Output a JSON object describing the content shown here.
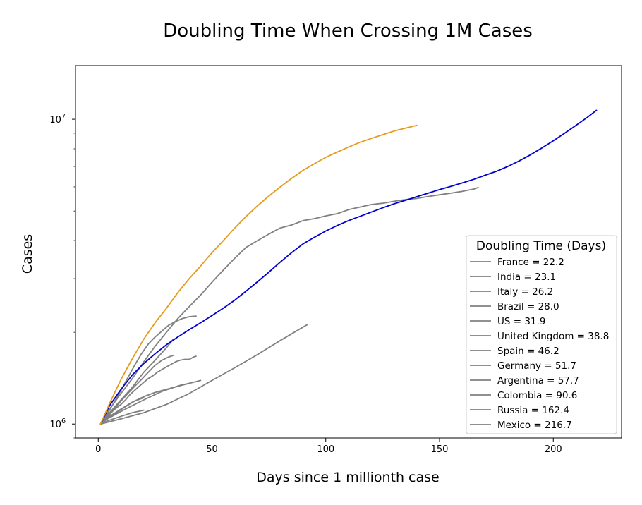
{
  "chart_data": {
    "type": "line",
    "title": "Doubling Time When Crossing 1M Cases",
    "xlabel": "Days since 1 millionth case",
    "ylabel": "Cases",
    "xlim": [
      -10,
      230
    ],
    "ylim": [
      900000,
      15000000
    ],
    "yscale": "log",
    "x_ticks": [
      0,
      50,
      100,
      150,
      200
    ],
    "y_ticks": [
      {
        "value": 1000000,
        "base": "10",
        "exp": "6"
      },
      {
        "value": 10000000,
        "base": "10",
        "exp": "7"
      }
    ],
    "grid": false,
    "legend": {
      "title": "Doubling Time (Days)",
      "location": "lower-right"
    },
    "colors": {
      "default": "#808080",
      "blue": "#0000cd",
      "orange": "#e69b1c"
    },
    "series": [
      {
        "name": "France = 22.2",
        "color": "#808080",
        "points": [
          [
            1,
            1000000
          ],
          [
            3,
            1040000
          ],
          [
            5,
            1080000
          ],
          [
            8,
            1130000
          ],
          [
            10,
            1160000
          ],
          [
            12,
            1200000
          ],
          [
            14,
            1250000
          ],
          [
            16,
            1290000
          ],
          [
            18,
            1330000
          ],
          [
            20,
            1370000
          ],
          [
            22,
            1410000
          ],
          [
            24,
            1440000
          ],
          [
            26,
            1480000
          ],
          [
            28,
            1510000
          ],
          [
            30,
            1540000
          ],
          [
            32,
            1570000
          ],
          [
            34,
            1600000
          ],
          [
            36,
            1620000
          ],
          [
            38,
            1630000
          ],
          [
            40,
            1630000
          ],
          [
            42,
            1660000
          ],
          [
            43,
            1670000
          ]
        ]
      },
      {
        "name": "India = 23.1",
        "color": "#808080",
        "points": [
          [
            1,
            1000000
          ],
          [
            5,
            1120000
          ],
          [
            10,
            1260000
          ],
          [
            15,
            1410000
          ],
          [
            20,
            1600000
          ],
          [
            25,
            1800000
          ],
          [
            30,
            2000000
          ],
          [
            35,
            2220000
          ],
          [
            40,
            2430000
          ],
          [
            45,
            2650000
          ],
          [
            50,
            2920000
          ],
          [
            55,
            3200000
          ],
          [
            60,
            3500000
          ],
          [
            65,
            3800000
          ],
          [
            70,
            4000000
          ],
          [
            75,
            4200000
          ],
          [
            80,
            4400000
          ],
          [
            85,
            4500000
          ],
          [
            90,
            4650000
          ],
          [
            95,
            4720000
          ],
          [
            100,
            4820000
          ],
          [
            105,
            4900000
          ],
          [
            110,
            5050000
          ],
          [
            115,
            5150000
          ],
          [
            120,
            5250000
          ],
          [
            125,
            5300000
          ],
          [
            130,
            5380000
          ],
          [
            135,
            5450000
          ],
          [
            140,
            5500000
          ],
          [
            145,
            5580000
          ],
          [
            150,
            5650000
          ],
          [
            155,
            5720000
          ],
          [
            160,
            5800000
          ],
          [
            165,
            5900000
          ],
          [
            167,
            5970000
          ]
        ]
      },
      {
        "name": "Italy = 26.2",
        "color": "#808080",
        "points": [
          [
            1,
            1000000
          ],
          [
            4,
            1050000
          ],
          [
            7,
            1120000
          ],
          [
            10,
            1190000
          ],
          [
            13,
            1260000
          ],
          [
            16,
            1330000
          ],
          [
            19,
            1400000
          ],
          [
            22,
            1480000
          ],
          [
            25,
            1560000
          ],
          [
            28,
            1620000
          ],
          [
            31,
            1660000
          ],
          [
            33,
            1680000
          ]
        ]
      },
      {
        "name": "Brazil = 28.0",
        "color": "#808080",
        "points": [
          [
            1,
            1000000
          ],
          [
            4,
            1080000
          ],
          [
            7,
            1180000
          ],
          [
            10,
            1290000
          ],
          [
            13,
            1420000
          ],
          [
            16,
            1560000
          ],
          [
            19,
            1700000
          ],
          [
            22,
            1830000
          ],
          [
            25,
            1930000
          ],
          [
            28,
            2020000
          ],
          [
            31,
            2110000
          ],
          [
            34,
            2170000
          ],
          [
            37,
            2220000
          ],
          [
            40,
            2250000
          ],
          [
            43,
            2260000
          ]
        ]
      },
      {
        "name": "US = 31.9",
        "color": "#808080",
        "points": [
          [
            1,
            1000000
          ],
          [
            5,
            1090000
          ],
          [
            10,
            1200000
          ],
          [
            15,
            1320000
          ],
          [
            20,
            1480000
          ],
          [
            25,
            1620000
          ],
          [
            30,
            1780000
          ],
          [
            33,
            1900000
          ]
        ]
      },
      {
        "name": "United Kingdom = 38.8",
        "color": "#808080",
        "points": [
          [
            1,
            1000000
          ],
          [
            4,
            1040000
          ],
          [
            8,
            1080000
          ],
          [
            12,
            1120000
          ],
          [
            16,
            1160000
          ],
          [
            20,
            1200000
          ],
          [
            24,
            1240000
          ],
          [
            28,
            1280000
          ],
          [
            32,
            1310000
          ],
          [
            36,
            1340000
          ],
          [
            40,
            1360000
          ],
          [
            45,
            1390000
          ]
        ]
      },
      {
        "name": "Spain = 46.2",
        "color": "#808080",
        "points": [
          [
            1,
            1000000
          ],
          [
            5,
            1060000
          ],
          [
            10,
            1120000
          ],
          [
            15,
            1180000
          ],
          [
            20,
            1230000
          ],
          [
            25,
            1270000
          ],
          [
            30,
            1300000
          ],
          [
            35,
            1330000
          ],
          [
            40,
            1360000
          ]
        ]
      },
      {
        "name": "Germany = 51.7",
        "color": "#808080",
        "points": [
          [
            1,
            1000000
          ],
          [
            5,
            1030000
          ],
          [
            10,
            1060000
          ],
          [
            15,
            1090000
          ],
          [
            20,
            1110000
          ]
        ]
      },
      {
        "name": "Argentina = 57.7",
        "color": "#808080",
        "points": [
          [
            1,
            1000000
          ],
          [
            4,
            1040000
          ],
          [
            8,
            1090000
          ],
          [
            12,
            1140000
          ],
          [
            16,
            1190000
          ],
          [
            20,
            1220000
          ]
        ]
      },
      {
        "name": "Colombia = 90.6",
        "color": "#808080",
        "points": [
          [
            1,
            1000000
          ],
          [
            10,
            1040000
          ],
          [
            20,
            1090000
          ],
          [
            30,
            1160000
          ],
          [
            40,
            1260000
          ],
          [
            50,
            1390000
          ],
          [
            60,
            1530000
          ],
          [
            70,
            1690000
          ],
          [
            80,
            1880000
          ],
          [
            90,
            2080000
          ],
          [
            92,
            2120000
          ]
        ]
      },
      {
        "name": "Russia = 162.4",
        "color": "#0000cd",
        "points": [
          [
            1,
            1000000
          ],
          [
            5,
            1150000
          ],
          [
            10,
            1300000
          ],
          [
            15,
            1450000
          ],
          [
            20,
            1580000
          ],
          [
            25,
            1700000
          ],
          [
            30,
            1820000
          ],
          [
            35,
            1930000
          ],
          [
            40,
            2040000
          ],
          [
            45,
            2150000
          ],
          [
            50,
            2270000
          ],
          [
            55,
            2400000
          ],
          [
            60,
            2550000
          ],
          [
            65,
            2730000
          ],
          [
            70,
            2930000
          ],
          [
            75,
            3150000
          ],
          [
            80,
            3400000
          ],
          [
            85,
            3650000
          ],
          [
            90,
            3900000
          ],
          [
            95,
            4100000
          ],
          [
            100,
            4300000
          ],
          [
            105,
            4480000
          ],
          [
            110,
            4650000
          ],
          [
            115,
            4800000
          ],
          [
            120,
            4960000
          ],
          [
            125,
            5120000
          ],
          [
            130,
            5280000
          ],
          [
            135,
            5420000
          ],
          [
            140,
            5570000
          ],
          [
            145,
            5720000
          ],
          [
            150,
            5880000
          ],
          [
            155,
            6020000
          ],
          [
            160,
            6180000
          ],
          [
            165,
            6350000
          ],
          [
            170,
            6550000
          ],
          [
            175,
            6750000
          ],
          [
            180,
            7000000
          ],
          [
            185,
            7300000
          ],
          [
            190,
            7650000
          ],
          [
            195,
            8050000
          ],
          [
            200,
            8500000
          ],
          [
            205,
            9000000
          ],
          [
            210,
            9550000
          ],
          [
            215,
            10150000
          ],
          [
            219,
            10700000
          ]
        ]
      },
      {
        "name": "Mexico = 216.7",
        "color": "#e69b1c",
        "points": [
          [
            1,
            1000000
          ],
          [
            5,
            1170000
          ],
          [
            10,
            1400000
          ],
          [
            15,
            1640000
          ],
          [
            20,
            1900000
          ],
          [
            25,
            2150000
          ],
          [
            30,
            2400000
          ],
          [
            35,
            2700000
          ],
          [
            40,
            3000000
          ],
          [
            45,
            3300000
          ],
          [
            50,
            3650000
          ],
          [
            55,
            4000000
          ],
          [
            60,
            4400000
          ],
          [
            65,
            4800000
          ],
          [
            70,
            5200000
          ],
          [
            75,
            5600000
          ],
          [
            80,
            6000000
          ],
          [
            85,
            6400000
          ],
          [
            90,
            6800000
          ],
          [
            95,
            7150000
          ],
          [
            100,
            7500000
          ],
          [
            105,
            7800000
          ],
          [
            110,
            8100000
          ],
          [
            115,
            8400000
          ],
          [
            120,
            8650000
          ],
          [
            125,
            8900000
          ],
          [
            130,
            9150000
          ],
          [
            135,
            9350000
          ],
          [
            140,
            9550000
          ]
        ]
      }
    ]
  }
}
